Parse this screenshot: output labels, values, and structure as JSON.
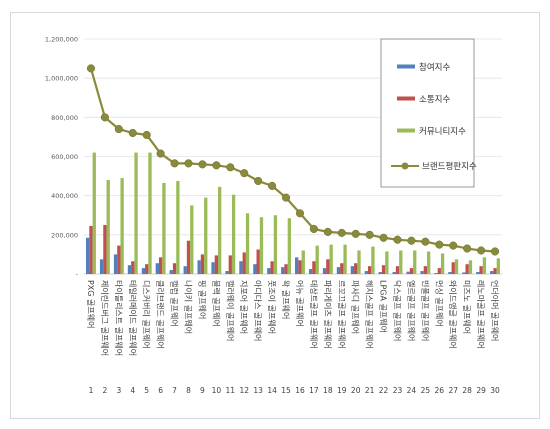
{
  "chart_data": {
    "type": "bar",
    "ylim": [
      0,
      1200000
    ],
    "yticks": [
      "-",
      "200,000",
      "400,000",
      "600,000",
      "800,000",
      "1,000,000",
      "1,200,000"
    ],
    "grid": true,
    "legend_position": "right",
    "numbers": [
      "1",
      "2",
      "3",
      "4",
      "5",
      "6",
      "7",
      "8",
      "9",
      "10",
      "11",
      "12",
      "13",
      "14",
      "15",
      "16",
      "17",
      "18",
      "19",
      "20",
      "21",
      "22",
      "23",
      "24",
      "25",
      "26",
      "27",
      "28",
      "29",
      "30"
    ],
    "categories": [
      "PXG 골프웨어",
      "제이린드버그 골프웨어",
      "타이틀리스트 골프웨어",
      "테일러메이드 골프웨어",
      "디스커버리 골프웨어",
      "클리브랜드 골프웨어",
      "캘럽 골프웨어",
      "나이키 골프웨어",
      "핑 골프웨어",
      "블랙 골프웨어",
      "캘러웨이 골프웨어",
      "지포어 골프웨어",
      "아디다스 골프웨어",
      "풋조이 골프웨어",
      "왁 골프웨어",
      "어뉴 골프웨어",
      "데상트골프 골프웨어",
      "파리게이츠 골프웨어",
      "르꼬끄골프 골프웨어",
      "파사디 골프웨어",
      "헤지스골프 골프웨어",
      "LPGA 골프웨어",
      "닥스골프 골프웨어",
      "엘르골프 골프웨어",
      "빈폴골프 골프웨어",
      "먼싱 골프웨어",
      "와이드앵글 골프웨어",
      "미즈노 골프웨어",
      "레노마골프 골프웨어",
      "언더아머 골프웨어"
    ],
    "series": [
      {
        "name": "참여지수",
        "color": "#4f81bd",
        "values": [
          185000,
          75000,
          100000,
          45000,
          30000,
          55000,
          20000,
          40000,
          70000,
          60000,
          15000,
          65000,
          50000,
          30000,
          35000,
          85000,
          25000,
          30000,
          35000,
          40000,
          15000,
          10000,
          10000,
          12000,
          15000,
          5000,
          10000,
          8000,
          10000,
          15000
        ]
      },
      {
        "name": "소통지수",
        "color": "#c0504d",
        "values": [
          245000,
          250000,
          145000,
          65000,
          50000,
          85000,
          55000,
          170000,
          100000,
          95000,
          95000,
          110000,
          125000,
          65000,
          50000,
          70000,
          65000,
          75000,
          55000,
          55000,
          40000,
          45000,
          40000,
          30000,
          40000,
          30000,
          60000,
          50000,
          40000,
          30000
        ]
      },
      {
        "name": "커뮤니티지수",
        "color": "#9bbb59",
        "values": [
          620000,
          480000,
          490000,
          620000,
          620000,
          465000,
          475000,
          350000,
          390000,
          445000,
          405000,
          310000,
          290000,
          300000,
          285000,
          120000,
          145000,
          150000,
          150000,
          120000,
          140000,
          115000,
          120000,
          120000,
          115000,
          105000,
          75000,
          70000,
          85000,
          80000
        ]
      },
      {
        "name": "브랜드평판지수",
        "color": "#8a8a3c",
        "values": [
          1050000,
          800000,
          740000,
          720000,
          710000,
          615000,
          565000,
          565000,
          560000,
          555000,
          545000,
          515000,
          475000,
          450000,
          390000,
          310000,
          230000,
          215000,
          210000,
          205000,
          200000,
          185000,
          175000,
          170000,
          165000,
          150000,
          145000,
          130000,
          120000,
          115000
        ]
      }
    ]
  }
}
